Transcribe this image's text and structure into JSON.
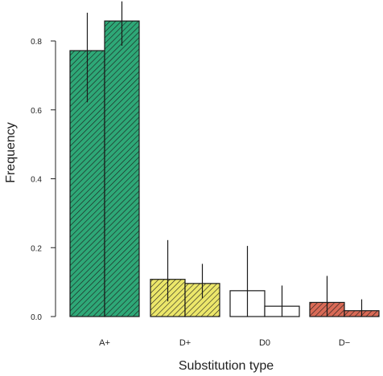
{
  "chart_data": {
    "type": "bar",
    "xlabel": "Substitution type",
    "ylabel": "Frequency",
    "ylim": [
      0,
      0.9
    ],
    "yticks": [
      0.0,
      0.2,
      0.4,
      0.6,
      0.8
    ],
    "ytick_labels": [
      "0.0",
      "0.2",
      "0.4",
      "0.6",
      "0.8"
    ],
    "grid": false,
    "legend": "none",
    "categories": [
      "A+",
      "D+",
      "D0",
      "D−"
    ],
    "colors": [
      "#2ea877",
      "#ece76a",
      "#ffffff",
      "#d96a56"
    ],
    "series": [
      {
        "values": [
          0.772,
          0.108,
          0.075,
          0.041
        ],
        "err_low": [
          0.622,
          0.044,
          0.0,
          0.0
        ],
        "err_high": [
          0.882,
          0.222,
          0.205,
          0.118
        ]
      },
      {
        "values": [
          0.858,
          0.096,
          0.03,
          0.017
        ],
        "err_low": [
          0.786,
          0.053,
          0.0,
          0.0
        ],
        "err_high": [
          0.915,
          0.153,
          0.09,
          0.05
        ]
      }
    ]
  }
}
